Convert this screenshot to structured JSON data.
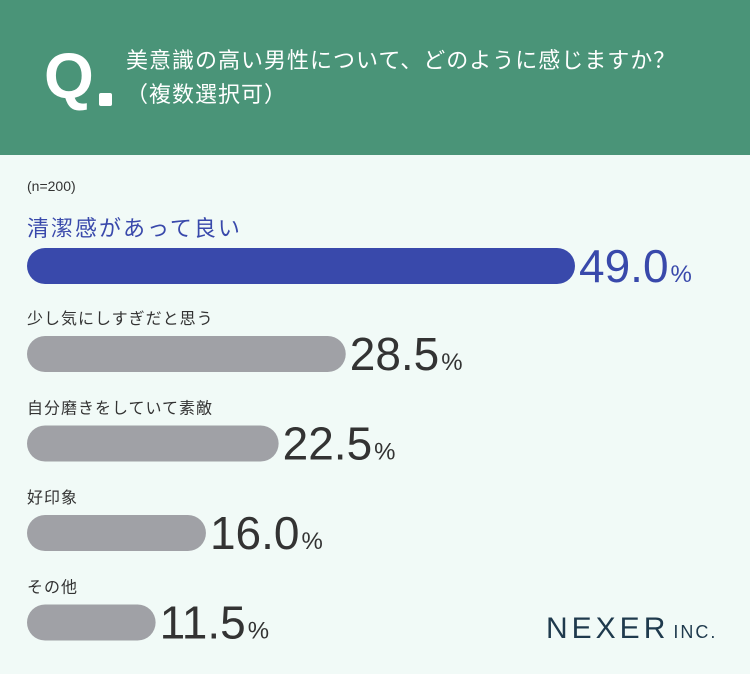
{
  "header": {
    "q_letter": "Q",
    "question_line1": "美意識の高い男性について、どのように感じますか？",
    "question_line2": "（複数選択可）"
  },
  "sample": "(n=200)",
  "brand": {
    "name": "NEXER",
    "suffix": "INC."
  },
  "colors": {
    "header_bg": "#4a9478",
    "top_bar": "#3949ab",
    "other_bar": "#a0a1a6",
    "background": "#f1faf7"
  },
  "chart_data": {
    "type": "bar",
    "orientation": "horizontal",
    "unit": "%",
    "categories": [
      "清潔感があって良い",
      "少し気にしすぎだと思う",
      "自分磨きをしていて素敵",
      "好印象",
      "その他"
    ],
    "values": [
      49.0,
      28.5,
      22.5,
      16.0,
      11.5
    ],
    "value_labels": [
      "49.0",
      "28.5",
      "22.5",
      "16.0",
      "11.5"
    ],
    "xlim": [
      0,
      50
    ],
    "grid": false,
    "legend": "none"
  }
}
